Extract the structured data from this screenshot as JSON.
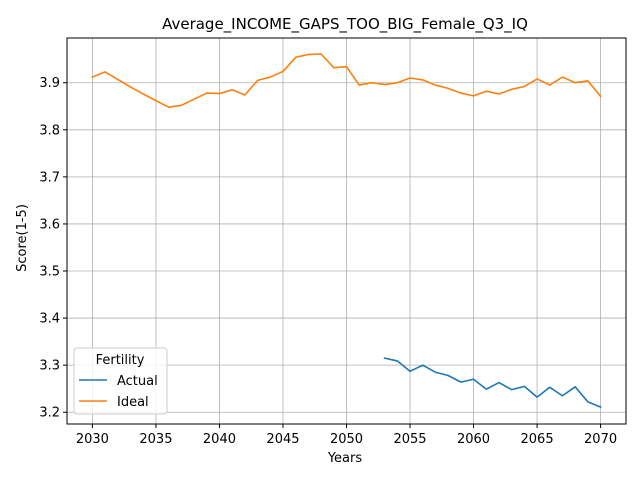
{
  "chart_data": {
    "type": "line",
    "title": "Average_INCOME_GAPS_TOO_BIG_Female_Q3_IQ",
    "xlabel": "Years",
    "ylabel": "Score(1-5)",
    "xlim": [
      2028,
      2072
    ],
    "ylim": [
      3.175,
      3.995
    ],
    "xticks": [
      2030,
      2035,
      2040,
      2045,
      2050,
      2055,
      2060,
      2065,
      2070
    ],
    "yticks": [
      3.2,
      3.3,
      3.4,
      3.5,
      3.6,
      3.7,
      3.8,
      3.9
    ],
    "grid": true,
    "legend": {
      "title": "Fertility",
      "position": "lower-left"
    },
    "series": [
      {
        "name": "Actual",
        "color": "#1f77b4",
        "x": [
          2053,
          2054,
          2055,
          2056,
          2057,
          2058,
          2059,
          2060,
          2061,
          2062,
          2063,
          2064,
          2065,
          2066,
          2067,
          2068,
          2069,
          2070
        ],
        "y": [
          3.315,
          3.309,
          3.287,
          3.3,
          3.285,
          3.278,
          3.264,
          3.27,
          3.249,
          3.263,
          3.248,
          3.255,
          3.232,
          3.253,
          3.235,
          3.254,
          3.222,
          3.211
        ]
      },
      {
        "name": "Ideal",
        "color": "#ff7f0e",
        "x": [
          2030,
          2031,
          2032,
          2033,
          2034,
          2035,
          2036,
          2037,
          2038,
          2039,
          2040,
          2041,
          2042,
          2043,
          2044,
          2045,
          2046,
          2047,
          2048,
          2049,
          2050,
          2051,
          2052,
          2053,
          2054,
          2055,
          2056,
          2057,
          2058,
          2059,
          2060,
          2061,
          2062,
          2063,
          2064,
          2065,
          2066,
          2067,
          2068,
          2069,
          2070
        ],
        "y": [
          3.912,
          3.923,
          3.907,
          3.891,
          3.876,
          3.862,
          3.848,
          3.852,
          3.865,
          3.878,
          3.877,
          3.885,
          3.874,
          3.905,
          3.912,
          3.924,
          3.954,
          3.96,
          3.961,
          3.932,
          3.934,
          3.895,
          3.9,
          3.896,
          3.9,
          3.91,
          3.906,
          3.895,
          3.888,
          3.878,
          3.872,
          3.882,
          3.876,
          3.886,
          3.892,
          3.908,
          3.895,
          3.912,
          3.9,
          3.904,
          3.871
        ]
      }
    ]
  }
}
